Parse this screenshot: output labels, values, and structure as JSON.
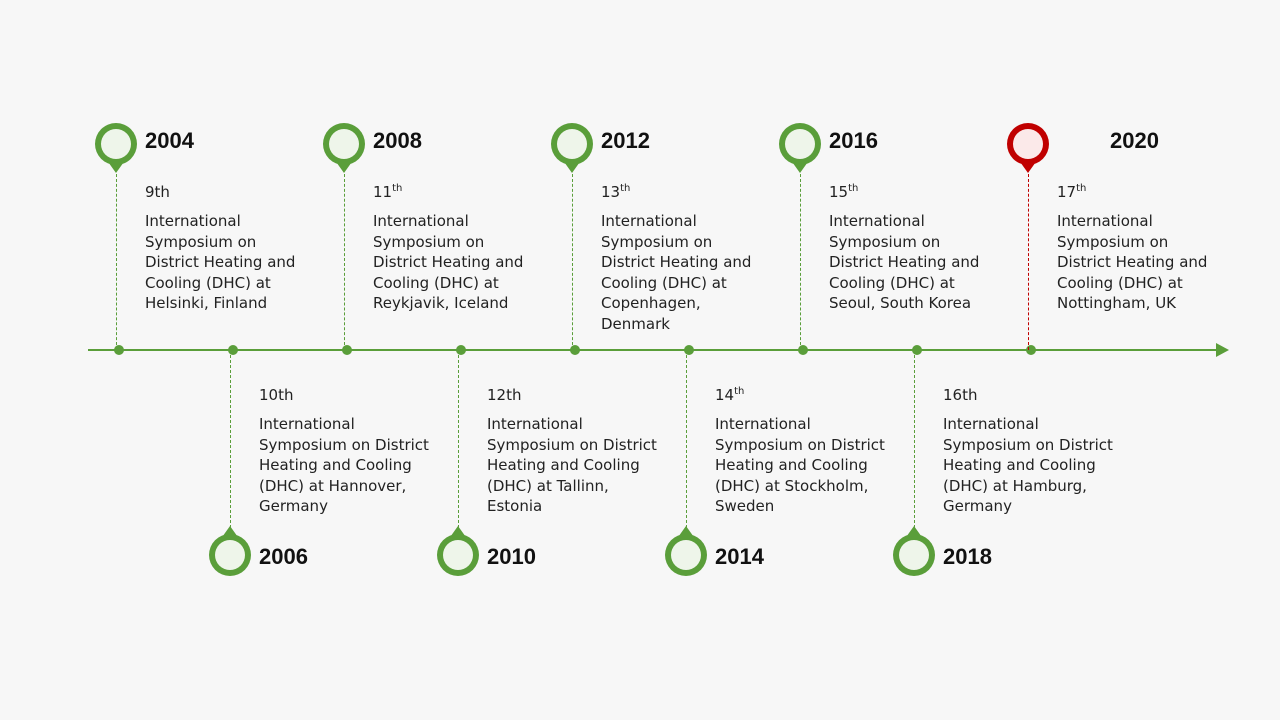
{
  "timeline": {
    "colors": {
      "accent": "#5a9e3a",
      "pin_fill": "#eef5ea",
      "highlight": "#c00000",
      "highlight_fill": "#fbe9e9"
    },
    "events": [
      {
        "year": "2004",
        "ord_num": "9",
        "ord_suffix": "th",
        "ord_sup": false,
        "text": "International Symposium on District Heating and Cooling (DHC) at Helsinki, Finland"
      },
      {
        "year": "2006",
        "ord_num": "10",
        "ord_suffix": "th",
        "ord_sup": false,
        "text": "International Symposium on District Heating and Cooling (DHC) at Hannover, Germany"
      },
      {
        "year": "2008",
        "ord_num": "11",
        "ord_suffix": "th",
        "ord_sup": true,
        "text": "International Symposium on District Heating and Cooling (DHC) at Reykjavik, Iceland"
      },
      {
        "year": "2010",
        "ord_num": "12",
        "ord_suffix": "th",
        "ord_sup": false,
        "text": "International Symposium on District Heating and Cooling (DHC) at Tallinn, Estonia"
      },
      {
        "year": "2012",
        "ord_num": "13",
        "ord_suffix": "th",
        "ord_sup": true,
        "text": "International Symposium on District Heating and Cooling (DHC) at Copenhagen, Denmark"
      },
      {
        "year": "2014",
        "ord_num": "14",
        "ord_suffix": "th",
        "ord_sup": true,
        "text": "International Symposium on District Heating and Cooling (DHC) at Stockholm, Sweden"
      },
      {
        "year": "2016",
        "ord_num": "15",
        "ord_suffix": "th",
        "ord_sup": true,
        "text": "International Symposium on District Heating and Cooling (DHC) at Seoul, South Korea"
      },
      {
        "year": "2018",
        "ord_num": "16",
        "ord_suffix": "th",
        "ord_sup": false,
        "text": "International Symposium on District Heating and Cooling (DHC) at Hamburg, Germany"
      },
      {
        "year": "2020",
        "ord_num": "17",
        "ord_suffix": "th",
        "ord_sup": true,
        "highlight": true,
        "text": "International Symposium on District Heating and Cooling (DHC) at Nottingham, UK"
      }
    ]
  }
}
